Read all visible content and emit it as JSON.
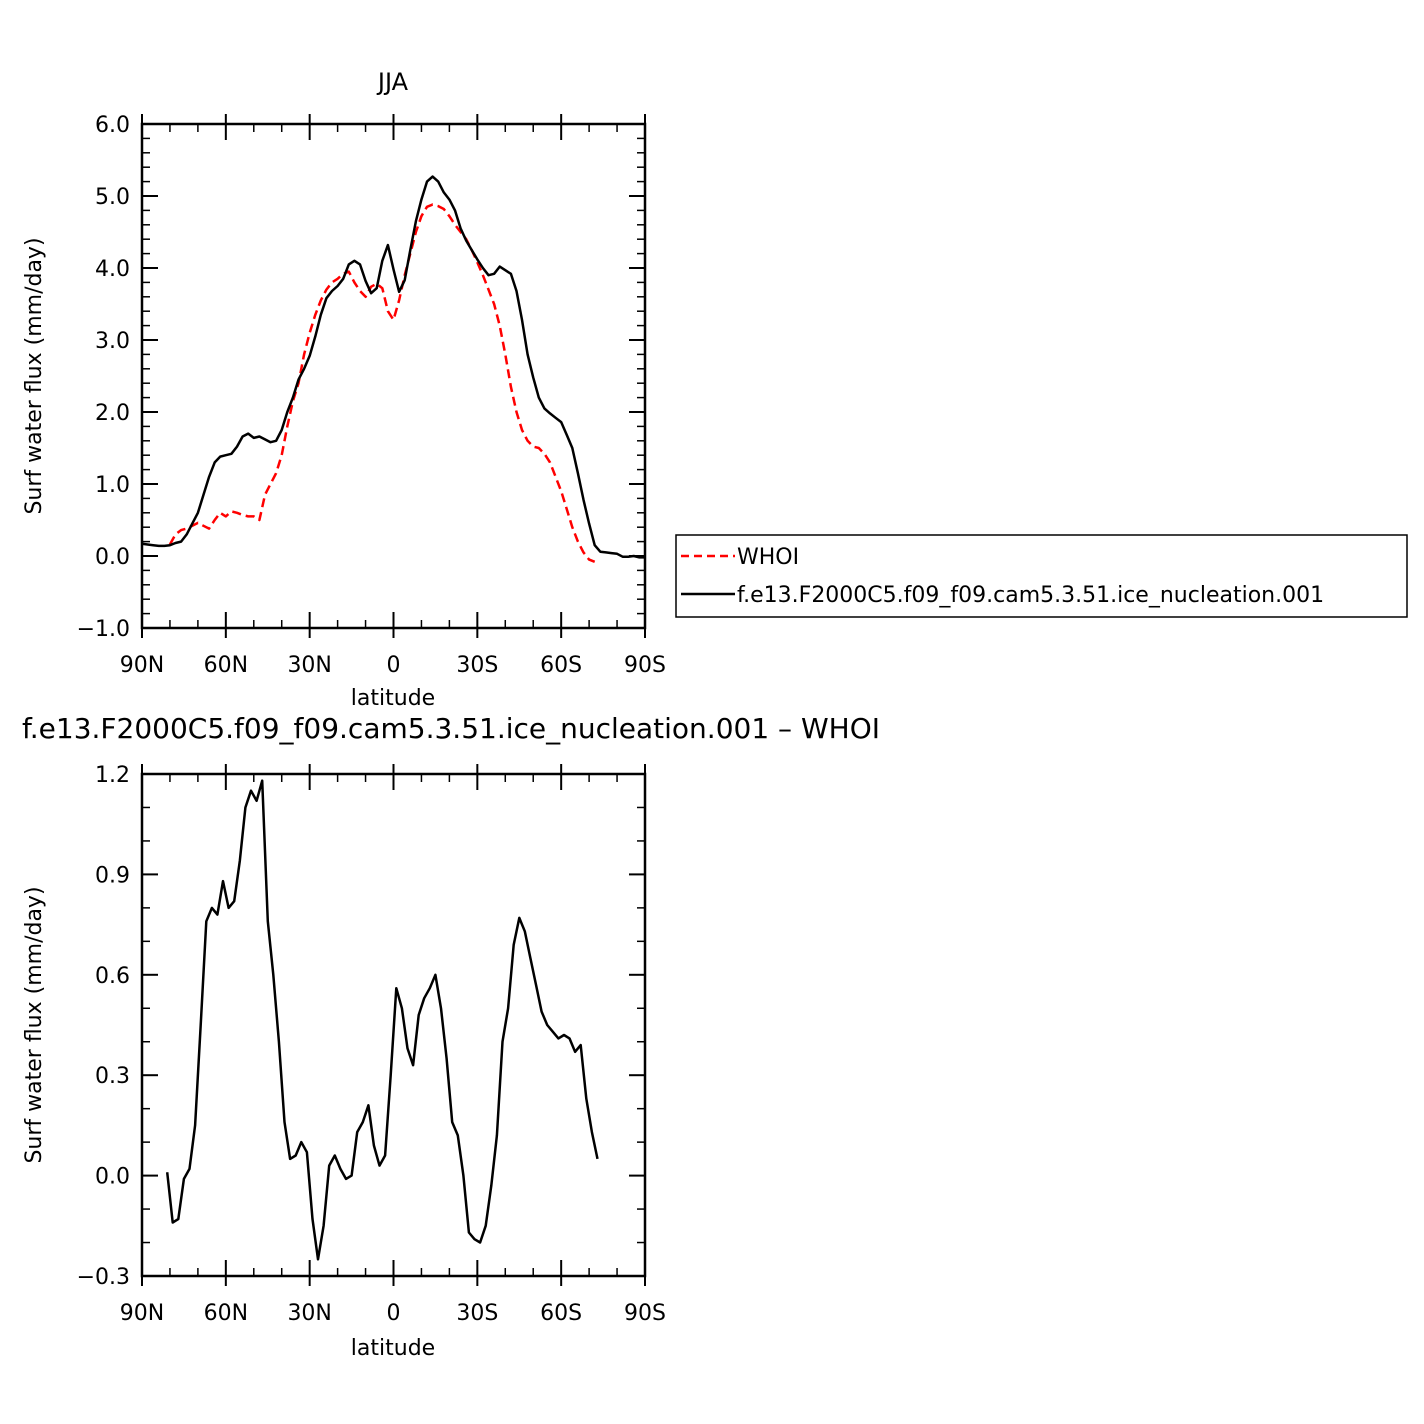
{
  "chart_data": [
    {
      "type": "line",
      "title": "JJA",
      "xlabel": "latitude",
      "ylabel": "Surf water flux (mm/day)",
      "xticks": [
        "90N",
        "60N",
        "30N",
        "0",
        "30S",
        "60S",
        "90S"
      ],
      "xlim": [
        90,
        -90
      ],
      "ylim": [
        -1.0,
        6.0
      ],
      "yticks": [
        "-1.0",
        "0.0",
        "1.0",
        "2.0",
        "3.0",
        "4.0",
        "5.0",
        "6.0"
      ],
      "legend": "right",
      "series": [
        {
          "name": "WHOI",
          "color": "#ff0000",
          "style": "dashed",
          "x": [
            80,
            78,
            76,
            74,
            72,
            70,
            68,
            66,
            64,
            62,
            60,
            58,
            56,
            54,
            52,
            50,
            48,
            46,
            44,
            42,
            40,
            38,
            36,
            34,
            32,
            30,
            28,
            26,
            24,
            22,
            20,
            18,
            16,
            14,
            12,
            10,
            8,
            6,
            4,
            2,
            0,
            -2,
            -4,
            -6,
            -8,
            -10,
            -12,
            -14,
            -16,
            -18,
            -20,
            -22,
            -24,
            -26,
            -28,
            -30,
            -32,
            -34,
            -36,
            -38,
            -40,
            -42,
            -44,
            -46,
            -48,
            -50,
            -52,
            -54,
            -56,
            -58,
            -60,
            -62,
            -64,
            -66,
            -68,
            -70,
            -72
          ],
          "y": [
            0.16,
            0.3,
            0.36,
            0.38,
            0.42,
            0.46,
            0.42,
            0.38,
            0.5,
            0.6,
            0.55,
            0.62,
            0.6,
            0.57,
            0.55,
            0.55,
            0.5,
            0.85,
            1.0,
            1.15,
            1.4,
            1.8,
            2.15,
            2.4,
            2.8,
            3.1,
            3.35,
            3.55,
            3.7,
            3.8,
            3.85,
            3.92,
            3.95,
            3.8,
            3.68,
            3.6,
            3.74,
            3.78,
            3.72,
            3.4,
            3.28,
            3.55,
            3.9,
            4.2,
            4.5,
            4.72,
            4.85,
            4.88,
            4.86,
            4.82,
            4.72,
            4.6,
            4.5,
            4.4,
            4.25,
            4.08,
            3.9,
            3.7,
            3.5,
            3.2,
            2.8,
            2.35,
            2.0,
            1.75,
            1.6,
            1.52,
            1.5,
            1.42,
            1.3,
            1.1,
            0.9,
            0.65,
            0.4,
            0.2,
            0.05,
            -0.05,
            -0.08
          ]
        },
        {
          "name": "f.e13.F2000C5.f09_f09.cam5.3.51.ice_nucleation.001",
          "color": "#000000",
          "style": "solid",
          "x": [
            90,
            88,
            86,
            84,
            82,
            80,
            78,
            76,
            74,
            72,
            70,
            68,
            66,
            64,
            62,
            60,
            58,
            56,
            54,
            52,
            50,
            48,
            46,
            44,
            42,
            40,
            38,
            36,
            34,
            32,
            30,
            28,
            26,
            24,
            22,
            20,
            18,
            16,
            14,
            12,
            10,
            8,
            6,
            4,
            2,
            0,
            -2,
            -4,
            -6,
            -8,
            -10,
            -12,
            -14,
            -16,
            -18,
            -20,
            -22,
            -24,
            -26,
            -28,
            -30,
            -32,
            -34,
            -36,
            -38,
            -40,
            -42,
            -44,
            -46,
            -48,
            -50,
            -52,
            -54,
            -56,
            -58,
            -60,
            -62,
            -64,
            -66,
            -68,
            -70,
            -72,
            -74,
            -76,
            -78,
            -80,
            -82,
            -84,
            -86,
            -88,
            -90
          ],
          "y": [
            0.17,
            0.16,
            0.15,
            0.14,
            0.14,
            0.15,
            0.18,
            0.2,
            0.3,
            0.45,
            0.6,
            0.85,
            1.1,
            1.3,
            1.38,
            1.4,
            1.42,
            1.52,
            1.66,
            1.7,
            1.64,
            1.66,
            1.62,
            1.58,
            1.6,
            1.75,
            2.0,
            2.2,
            2.45,
            2.6,
            2.78,
            3.05,
            3.35,
            3.58,
            3.68,
            3.75,
            3.85,
            4.05,
            4.1,
            4.05,
            3.82,
            3.65,
            3.72,
            4.1,
            4.32,
            3.98,
            3.67,
            3.83,
            4.25,
            4.65,
            4.95,
            5.2,
            5.27,
            5.2,
            5.05,
            4.95,
            4.8,
            4.55,
            4.38,
            4.25,
            4.12,
            4.0,
            3.9,
            3.92,
            4.02,
            3.97,
            3.92,
            3.68,
            3.28,
            2.8,
            2.48,
            2.2,
            2.05,
            1.98,
            1.92,
            1.86,
            1.68,
            1.5,
            1.15,
            0.78,
            0.45,
            0.15,
            0.06,
            0.05,
            0.04,
            0.03,
            -0.01,
            -0.01,
            0.0,
            -0.02,
            -0.02
          ]
        }
      ]
    },
    {
      "type": "line",
      "title": "f.e13.F2000C5.f09_f09.cam5.3.51.ice_nucleation.001 – WHOI",
      "xlabel": "latitude",
      "ylabel": "Surf water flux (mm/day)",
      "xticks": [
        "90N",
        "60N",
        "30N",
        "0",
        "30S",
        "60S",
        "90S"
      ],
      "xlim": [
        90,
        -90
      ],
      "ylim": [
        -0.3,
        1.2
      ],
      "yticks": [
        "-0.3",
        "0.0",
        "0.3",
        "0.6",
        "0.9",
        "1.2"
      ],
      "series": [
        {
          "color": "#000000",
          "style": "solid",
          "x": [
            81,
            79,
            77,
            75,
            73,
            71,
            69,
            67,
            65,
            63,
            61,
            59,
            57,
            55,
            53,
            51,
            49,
            47,
            45,
            43,
            41,
            39,
            37,
            35,
            33,
            31,
            29,
            27,
            25,
            23,
            21,
            19,
            17,
            15,
            13,
            11,
            9,
            7,
            5,
            3,
            1,
            -1,
            -3,
            -5,
            -7,
            -9,
            -11,
            -13,
            -15,
            -17,
            -19,
            -21,
            -23,
            -25,
            -27,
            -29,
            -31,
            -33,
            -35,
            -37,
            -39,
            -41,
            -43,
            -45,
            -47,
            -49,
            -51,
            -53,
            -55,
            -57,
            -59,
            -61,
            -63,
            -65,
            -67,
            -69,
            -71,
            -73
          ],
          "y": [
            0.01,
            -0.14,
            -0.13,
            -0.01,
            0.02,
            0.15,
            0.45,
            0.76,
            0.8,
            0.78,
            0.88,
            0.8,
            0.82,
            0.94,
            1.1,
            1.15,
            1.12,
            1.18,
            0.76,
            0.6,
            0.4,
            0.16,
            0.05,
            0.06,
            0.1,
            0.07,
            -0.13,
            -0.25,
            -0.15,
            0.03,
            0.06,
            0.02,
            -0.01,
            0.0,
            0.13,
            0.16,
            0.21,
            0.09,
            0.03,
            0.06,
            0.3,
            0.56,
            0.5,
            0.38,
            0.33,
            0.48,
            0.53,
            0.56,
            0.6,
            0.5,
            0.35,
            0.16,
            0.12,
            0.0,
            -0.17,
            -0.19,
            -0.2,
            -0.15,
            -0.03,
            0.12,
            0.4,
            0.5,
            0.69,
            0.77,
            0.73,
            0.65,
            0.57,
            0.49,
            0.45,
            0.43,
            0.41,
            0.42,
            0.41,
            0.37,
            0.39,
            0.23,
            0.13,
            0.05
          ]
        }
      ]
    }
  ]
}
